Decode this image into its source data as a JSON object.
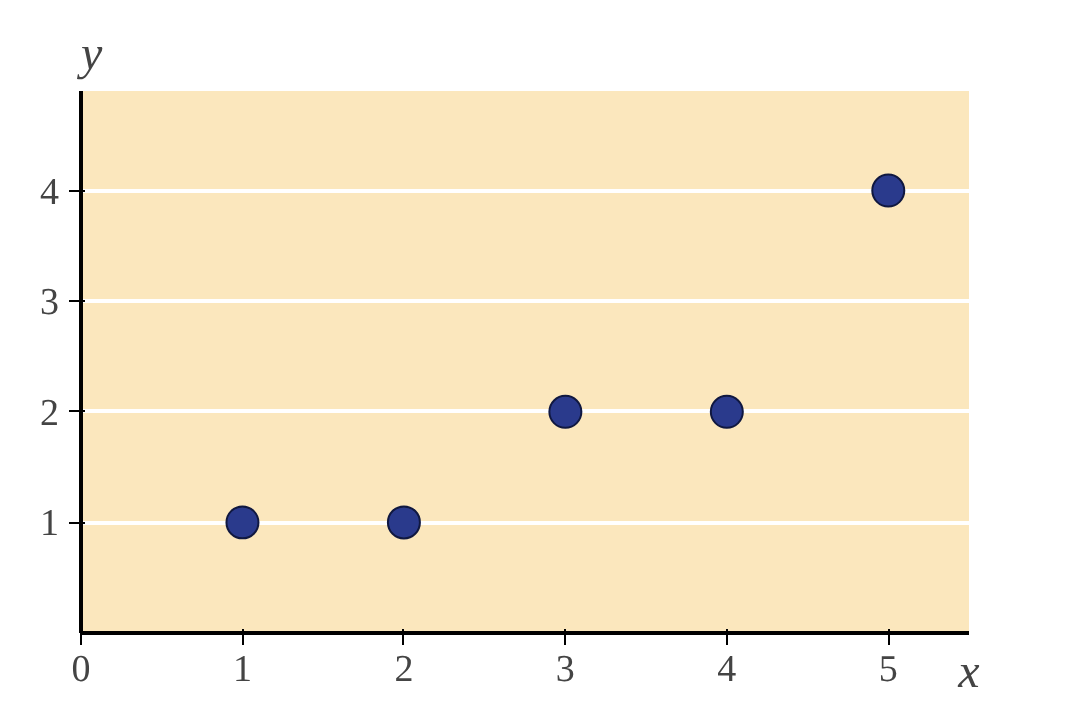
{
  "chart_data": {
    "type": "scatter",
    "xlabel": "x",
    "ylabel": "y",
    "x": [
      1,
      2,
      3,
      4,
      5
    ],
    "series": [
      {
        "color": "#2a3a8c",
        "values": [
          1,
          1,
          2,
          2,
          4
        ]
      }
    ],
    "xlim": [
      0,
      5.5
    ],
    "ylim": [
      0,
      4.9
    ],
    "xticks": [
      0,
      1,
      2,
      3,
      4,
      5
    ],
    "yticks": [
      1,
      2,
      3,
      4
    ],
    "grid": "y",
    "marker": "circle"
  }
}
